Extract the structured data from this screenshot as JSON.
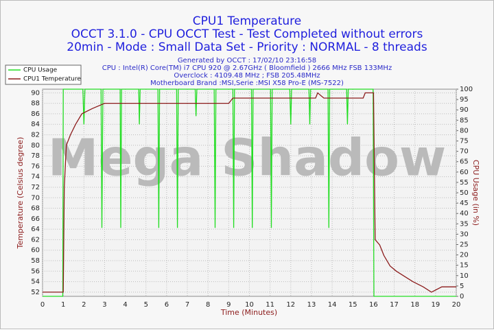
{
  "chart_data": {
    "type": "line",
    "title": "CPU1 Temperature",
    "subtitle": [
      "OCCT 3.1.0 - CPU OCCT Test - Test Completed without errors",
      "20min - Mode : Small Data Set - Priority : NORMAL - 8 threads"
    ],
    "info": [
      "Generated by OCCT : 17/02/10 23:16:58",
      "CPU : Intel(R) Core(TM) i7 CPU 920 @ 2.67GHz ( Bloomfield ) 2666 MHz FSB 133MHz",
      "Overclock : 4109.48 MHz ; FSB 205.48MHz",
      "Motherboard Brand :MSI,Serie :MSI X58 Pro-E (MS-7522)"
    ],
    "watermark": "Mega Shadow",
    "x_label": "Time (Minutes)",
    "y_label": "Temperature (Celsius degree)",
    "y2_label": "CPU Usage (in %)",
    "xlim": [
      0,
      20
    ],
    "xticks": [
      0,
      1,
      2,
      3,
      4,
      5,
      6,
      7,
      8,
      9,
      10,
      11,
      12,
      13,
      14,
      15,
      16,
      17,
      18,
      19,
      20
    ],
    "ylim": [
      51.2,
      90.7
    ],
    "yticks": [
      52,
      54,
      56,
      58,
      60,
      62,
      64,
      66,
      68,
      70,
      72,
      74,
      76,
      78,
      80,
      82,
      84,
      86,
      88,
      90
    ],
    "y2lim": [
      0,
      100
    ],
    "y2ticks": [
      0,
      5,
      10,
      15,
      20,
      25,
      30,
      35,
      40,
      45,
      50,
      55,
      60,
      65,
      70,
      75,
      80,
      85,
      90,
      95,
      100
    ],
    "grid": true,
    "legend": "upper left",
    "series": [
      {
        "name": "CPU Usage",
        "color": "#22dd22",
        "axis": "y2",
        "x": [
          0,
          0.98,
          1.0,
          1.95,
          2.0,
          2.05,
          2.83,
          2.87,
          2.92,
          3.75,
          3.78,
          3.82,
          4.65,
          4.68,
          4.72,
          5.58,
          5.62,
          5.66,
          6.48,
          6.52,
          6.56,
          7.38,
          7.42,
          7.46,
          8.3,
          8.34,
          8.38,
          9.2,
          9.24,
          9.28,
          10.1,
          10.14,
          10.18,
          11.02,
          11.06,
          11.1,
          11.95,
          12.0,
          12.04,
          12.88,
          12.92,
          12.96,
          13.8,
          13.84,
          13.88,
          14.7,
          14.74,
          14.78,
          15.98,
          16.02,
          20
        ],
        "values": [
          0,
          0,
          100,
          100,
          83,
          100,
          100,
          33,
          100,
          100,
          33,
          100,
          100,
          83,
          100,
          100,
          33,
          100,
          100,
          33,
          100,
          100,
          87,
          100,
          100,
          33,
          100,
          100,
          33,
          100,
          100,
          33,
          100,
          100,
          33,
          100,
          100,
          83,
          100,
          100,
          83,
          100,
          100,
          33,
          100,
          100,
          83,
          100,
          100,
          0,
          0
        ]
      },
      {
        "name": "CPU1 Temperature",
        "color": "#8b1a1a",
        "x": [
          0,
          1.0,
          1.05,
          1.15,
          1.35,
          1.6,
          1.9,
          2.4,
          3.0,
          9.0,
          9.2,
          13.2,
          13.3,
          13.6,
          15.5,
          15.6,
          16.0,
          16.08,
          16.3,
          16.5,
          16.8,
          17.1,
          17.5,
          17.9,
          18.4,
          18.8,
          19.3,
          20
        ],
        "values": [
          52,
          52,
          72,
          80,
          82,
          84,
          86,
          87,
          88,
          88,
          89,
          89,
          90,
          89,
          89,
          90,
          90,
          62,
          61,
          59,
          57,
          56,
          55,
          54,
          53,
          52,
          53,
          53
        ]
      }
    ]
  }
}
